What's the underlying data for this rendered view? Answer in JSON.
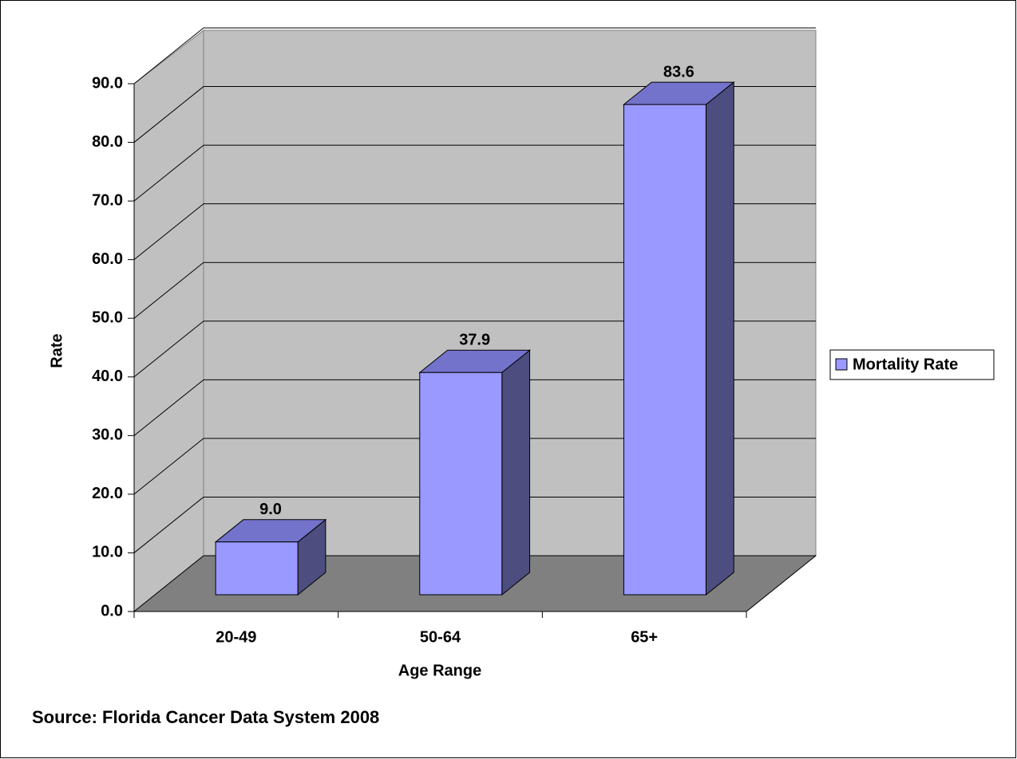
{
  "chart_data": {
    "type": "bar3d",
    "x_label": "Age Range",
    "y_label": "Rate",
    "categories": [
      "20-49",
      "50-64",
      "65+"
    ],
    "series": [
      {
        "name": "Mortality Rate",
        "color": "#9999ff",
        "values": [
          9.0,
          37.9,
          83.6
        ],
        "value_labels": [
          "9.0",
          "37.9",
          "83.6"
        ]
      }
    ],
    "ylim": [
      0,
      90
    ],
    "yticks": [
      {
        "value": 0,
        "label": "0.0"
      },
      {
        "value": 10,
        "label": "10.0"
      },
      {
        "value": 20,
        "label": "20.0"
      },
      {
        "value": 30,
        "label": "30.0"
      },
      {
        "value": 40,
        "label": "40.0"
      },
      {
        "value": 50,
        "label": "50.0"
      },
      {
        "value": 60,
        "label": "60.0"
      },
      {
        "value": 70,
        "label": "70.0"
      },
      {
        "value": 80,
        "label": "80.0"
      },
      {
        "value": 90,
        "label": "90.0"
      }
    ],
    "grid": true,
    "legend": "right",
    "source": "Source: Florida Cancer Data System 2008"
  }
}
